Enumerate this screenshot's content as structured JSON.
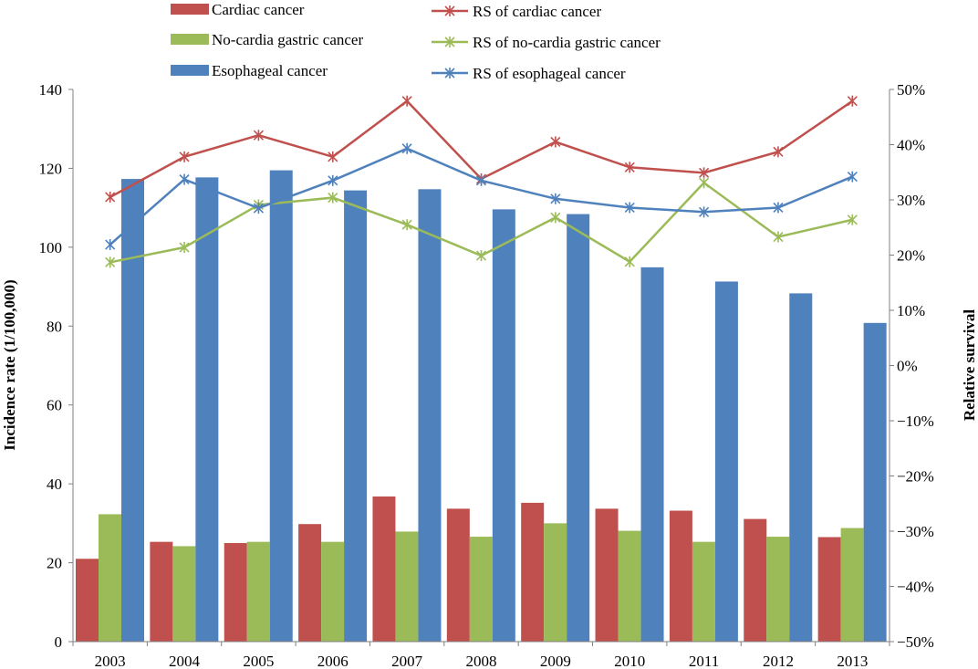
{
  "chart_data": {
    "type": "bar",
    "categories": [
      "2003",
      "2004",
      "2005",
      "2006",
      "2007",
      "2008",
      "2009",
      "2010",
      "2011",
      "2012",
      "2013"
    ],
    "series": [
      {
        "name": "Cardiac cancer",
        "kind": "bar",
        "axis": "left",
        "color": "#C0504D",
        "values": [
          21.0,
          25.3,
          25.0,
          29.8,
          36.8,
          33.7,
          35.2,
          33.7,
          33.2,
          31.1,
          26.5
        ]
      },
      {
        "name": "No-cardia gastric cancer",
        "kind": "bar",
        "axis": "left",
        "color": "#9BBB59",
        "values": [
          32.3,
          24.2,
          25.3,
          25.3,
          27.9,
          26.6,
          30.0,
          28.1,
          25.3,
          26.6,
          28.8
        ]
      },
      {
        "name": "Esophageal cancer",
        "kind": "bar",
        "axis": "left",
        "color": "#4F81BD",
        "values": [
          117.3,
          117.7,
          119.5,
          114.4,
          114.7,
          109.6,
          108.4,
          94.9,
          91.3,
          88.3,
          80.8
        ]
      },
      {
        "name": "RS of cardiac cancer",
        "kind": "line",
        "axis": "right",
        "color": "#C0504D",
        "values": [
          30.5,
          37.8,
          41.7,
          37.8,
          47.9,
          33.8,
          40.5,
          35.9,
          34.9,
          38.7,
          47.9
        ]
      },
      {
        "name": "RS of no-cardia gastric cancer",
        "kind": "line",
        "axis": "right",
        "color": "#9BBB59",
        "values": [
          18.7,
          21.4,
          29.1,
          30.4,
          25.5,
          19.9,
          26.8,
          18.8,
          33.1,
          23.3,
          26.4
        ]
      },
      {
        "name": "RS of esophageal cancer",
        "kind": "line",
        "axis": "right",
        "color": "#4F81BD",
        "values": [
          21.9,
          33.7,
          28.5,
          33.5,
          39.3,
          33.5,
          30.2,
          28.6,
          27.8,
          28.6,
          34.2
        ]
      }
    ],
    "ylabel": "Incidence rate (1/100,000)",
    "ylim": [
      0,
      140
    ],
    "yticks": [
      "0",
      "20",
      "40",
      "60",
      "80",
      "100",
      "120",
      "140"
    ],
    "y2label": "Relative survival",
    "y2lim": [
      -50,
      50
    ],
    "y2ticks": [
      "−50%",
      "−40%",
      "−30%",
      "−20%",
      "−10%",
      "0%",
      "10%",
      "20%",
      "30%",
      "40%",
      "50%"
    ],
    "grid": false,
    "legend_position": "top"
  }
}
